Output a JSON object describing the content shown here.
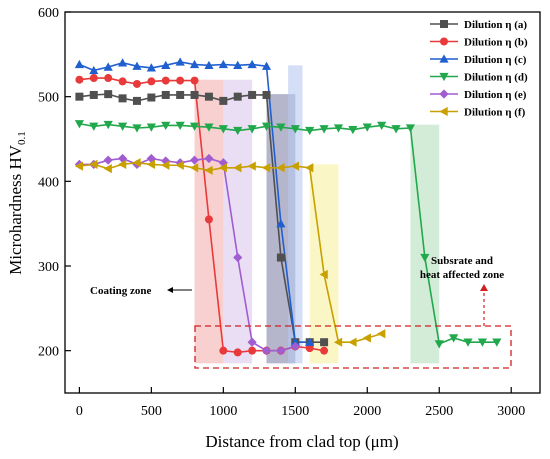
{
  "chart_data": {
    "type": "line",
    "xlabel": "Distance from clad top (μm)",
    "ylabel": "Microhardness HV",
    "ylabel_sub": "0.1",
    "xlim": [
      -100,
      3200
    ],
    "ylim": [
      150,
      600
    ],
    "xticks": [
      0,
      500,
      1000,
      1500,
      2000,
      2500,
      3000
    ],
    "yticks": [
      200,
      300,
      400,
      500,
      600
    ],
    "grid": false,
    "legend": "top-right",
    "series": [
      {
        "name": "Dilution η (a)",
        "color": "#505050",
        "marker": "square",
        "x": [
          0,
          100,
          200,
          300,
          400,
          500,
          600,
          700,
          800,
          900,
          1000,
          1100,
          1200,
          1300,
          1400,
          1500,
          1600,
          1700
        ],
        "y": [
          500,
          502,
          503,
          498,
          495,
          499,
          502,
          502,
          502,
          500,
          495,
          500,
          502,
          502,
          310,
          210,
          210,
          210
        ]
      },
      {
        "name": "Dilution η (b)",
        "color": "#e83a3a",
        "marker": "circle",
        "x": [
          0,
          100,
          200,
          300,
          400,
          500,
          600,
          700,
          800,
          900,
          1000,
          1100,
          1200,
          1300,
          1400,
          1500,
          1600,
          1700
        ],
        "y": [
          520,
          522,
          522,
          518,
          515,
          518,
          519,
          519,
          519,
          355,
          200,
          198,
          200,
          200,
          200,
          205,
          203,
          200
        ]
      },
      {
        "name": "Dilution η (c)",
        "color": "#1f5fd0",
        "marker": "triangle-up",
        "x": [
          0,
          100,
          200,
          300,
          400,
          500,
          600,
          700,
          800,
          900,
          1000,
          1100,
          1200,
          1300,
          1400,
          1500,
          1600
        ],
        "y": [
          538,
          531,
          535,
          540,
          536,
          534,
          537,
          541,
          538,
          537,
          538,
          537,
          538,
          536,
          350,
          210,
          210
        ]
      },
      {
        "name": "Dilution η (d)",
        "color": "#22a84c",
        "marker": "triangle-down",
        "x": [
          0,
          100,
          200,
          300,
          400,
          500,
          600,
          700,
          800,
          900,
          1000,
          1100,
          1200,
          1300,
          1400,
          1500,
          1600,
          1700,
          1800,
          1900,
          2000,
          2100,
          2200,
          2300,
          2400,
          2500,
          2600,
          2700,
          2800,
          2900
        ],
        "y": [
          468,
          465,
          467,
          465,
          463,
          464,
          466,
          466,
          465,
          464,
          462,
          460,
          462,
          465,
          464,
          462,
          460,
          462,
          463,
          461,
          464,
          466,
          462,
          463,
          310,
          208,
          215,
          210,
          210,
          210
        ]
      },
      {
        "name": "Dilution η (e)",
        "color": "#a05cd0",
        "marker": "diamond",
        "x": [
          0,
          100,
          200,
          300,
          400,
          500,
          600,
          700,
          800,
          900,
          1000,
          1100,
          1200,
          1300,
          1400,
          1500
        ],
        "y": [
          420,
          420,
          425,
          427,
          420,
          427,
          424,
          422,
          425,
          427,
          422,
          310,
          210,
          200,
          200,
          205
        ]
      },
      {
        "name": "Dilution η (f)",
        "color": "#c8a000",
        "marker": "triangle-left",
        "x": [
          0,
          100,
          200,
          300,
          400,
          500,
          600,
          700,
          800,
          900,
          1000,
          1100,
          1200,
          1300,
          1400,
          1500,
          1600,
          1700,
          1800,
          1900,
          2000,
          2100
        ],
        "y": [
          418,
          420,
          415,
          420,
          422,
          420,
          419,
          419,
          416,
          413,
          416,
          416,
          418,
          416,
          416,
          418,
          416,
          290,
          210,
          210,
          215,
          220
        ]
      }
    ],
    "bands": [
      {
        "x0": 800,
        "x1": 1000,
        "color": "#f5b0b0"
      },
      {
        "x0": 1000,
        "x1": 1200,
        "color": "#dcc8ec"
      },
      {
        "x0": 1300,
        "x1": 1500,
        "color": "#8484a8"
      },
      {
        "x0": 1450,
        "x1": 1550,
        "color": "#b8c8f0"
      },
      {
        "x0": 1600,
        "x1": 1800,
        "color": "#f6f0a0"
      },
      {
        "x0": 2300,
        "x1": 2500,
        "color": "#b6e0bc"
      }
    ],
    "annotations": {
      "coating_zone": "Coating zone",
      "substrate_line1": "Subsrate and",
      "substrate_line2": "heat affected zone"
    }
  }
}
